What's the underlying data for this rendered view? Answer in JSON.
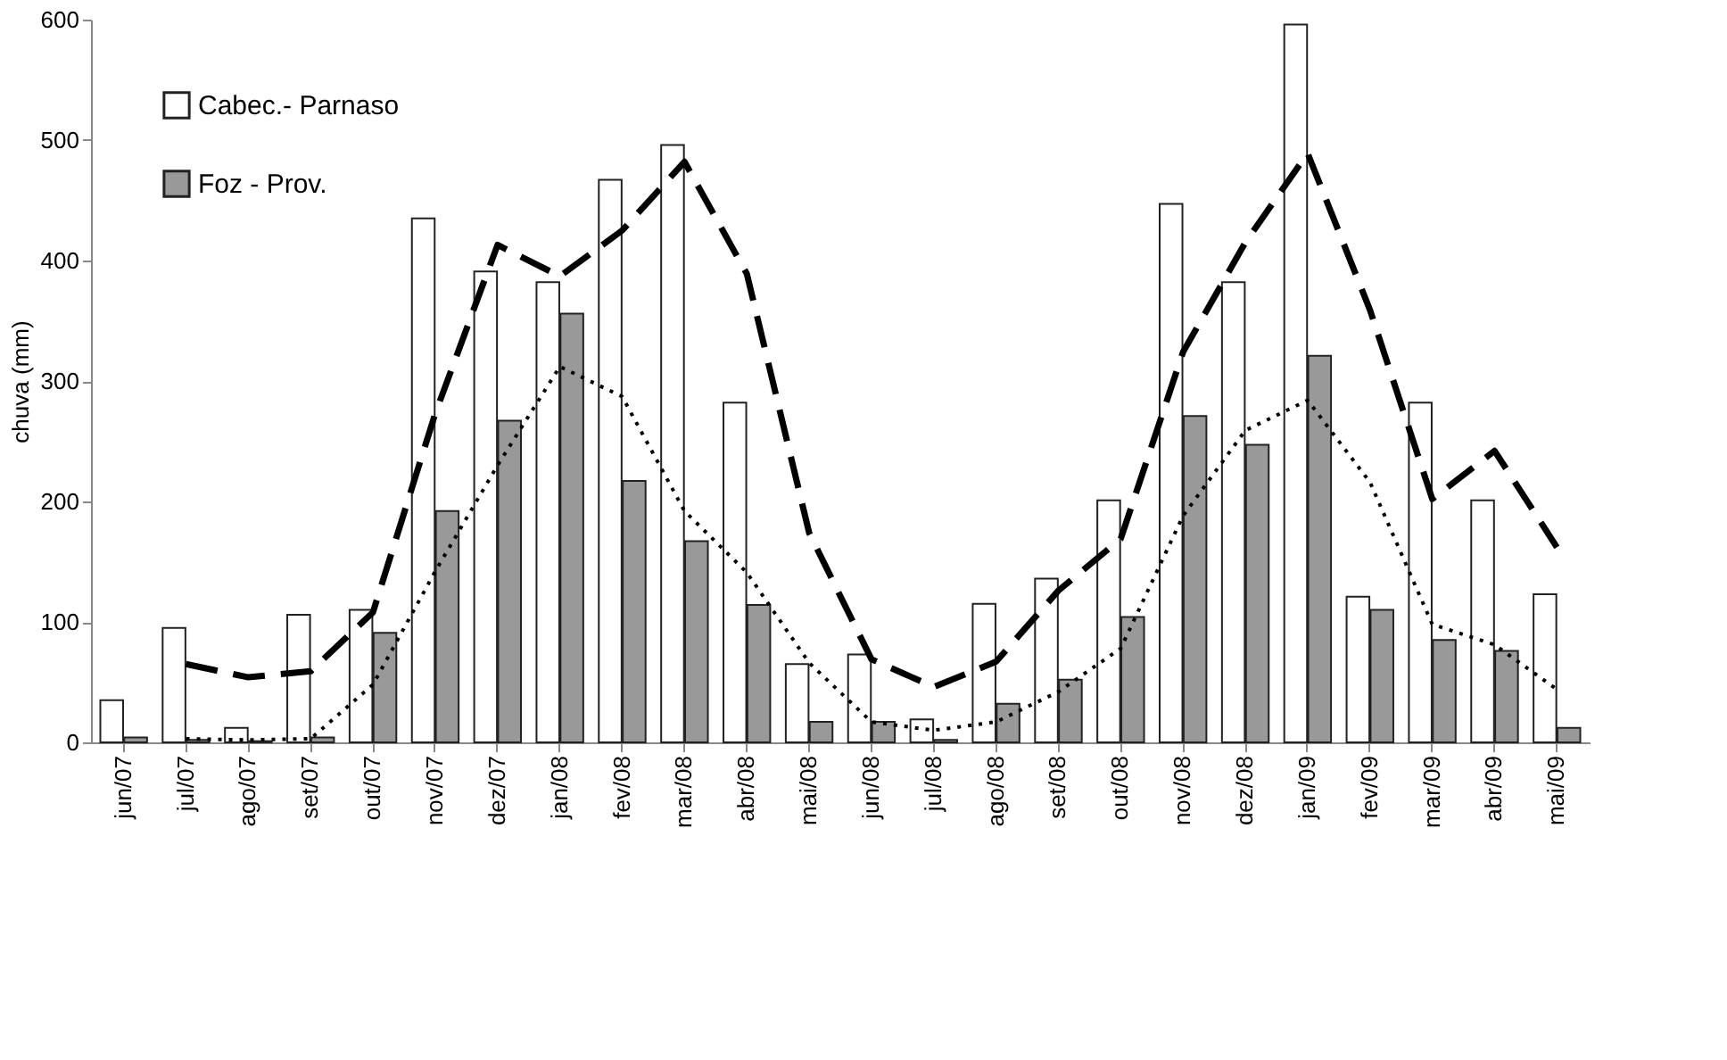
{
  "chart_data": {
    "type": "bar",
    "ylabel": "chuva (mm)",
    "categories": [
      "jun/07",
      "jul/07",
      "ago/07",
      "set/07",
      "out/07",
      "nov/07",
      "dez/07",
      "jan/08",
      "fev/08",
      "mar/08",
      "abr/08",
      "mai/08",
      "jun/08",
      "jul/08",
      "ago/08",
      "set/08",
      "out/08",
      "nov/08",
      "dez/08",
      "jan/09",
      "fev/09",
      "mar/09",
      "abr/09",
      "mai/09"
    ],
    "series": [
      {
        "name": "Cabec.- Parnaso",
        "color": "#ffffff",
        "values": [
          35,
          95,
          12,
          106,
          110,
          435,
          391,
          382,
          467,
          496,
          282,
          65,
          73,
          19,
          115,
          136,
          201,
          447,
          382,
          596,
          121,
          282,
          201,
          123
        ]
      },
      {
        "name": "Foz - Prov.",
        "color": "#999999",
        "values": [
          4,
          2,
          1,
          4,
          91,
          192,
          267,
          356,
          217,
          167,
          114,
          17,
          17,
          2,
          32,
          52,
          104,
          271,
          247,
          321,
          110,
          85,
          76,
          12
        ]
      },
      {
        "type": "line",
        "line_style": "dashed",
        "color": "#000000",
        "values": [
          null,
          65,
          54,
          59,
          108,
          273,
          413,
          387,
          425,
          482,
          389,
          174,
          69,
          46,
          67,
          126,
          169,
          324,
          415,
          489,
          359,
          202,
          242,
          162
        ]
      },
      {
        "type": "line",
        "line_style": "dotted",
        "color": "#000000",
        "values": [
          null,
          3,
          2,
          3,
          48,
          142,
          230,
          312,
          287,
          192,
          141,
          66,
          17,
          10,
          17,
          42,
          78,
          188,
          259,
          284,
          216,
          98,
          81,
          44
        ]
      }
    ],
    "ylim": [
      0,
      600
    ],
    "yticks": [
      0,
      100,
      200,
      300,
      400,
      500,
      600
    ],
    "grid": false,
    "legend": "top left",
    "marker": "none"
  }
}
